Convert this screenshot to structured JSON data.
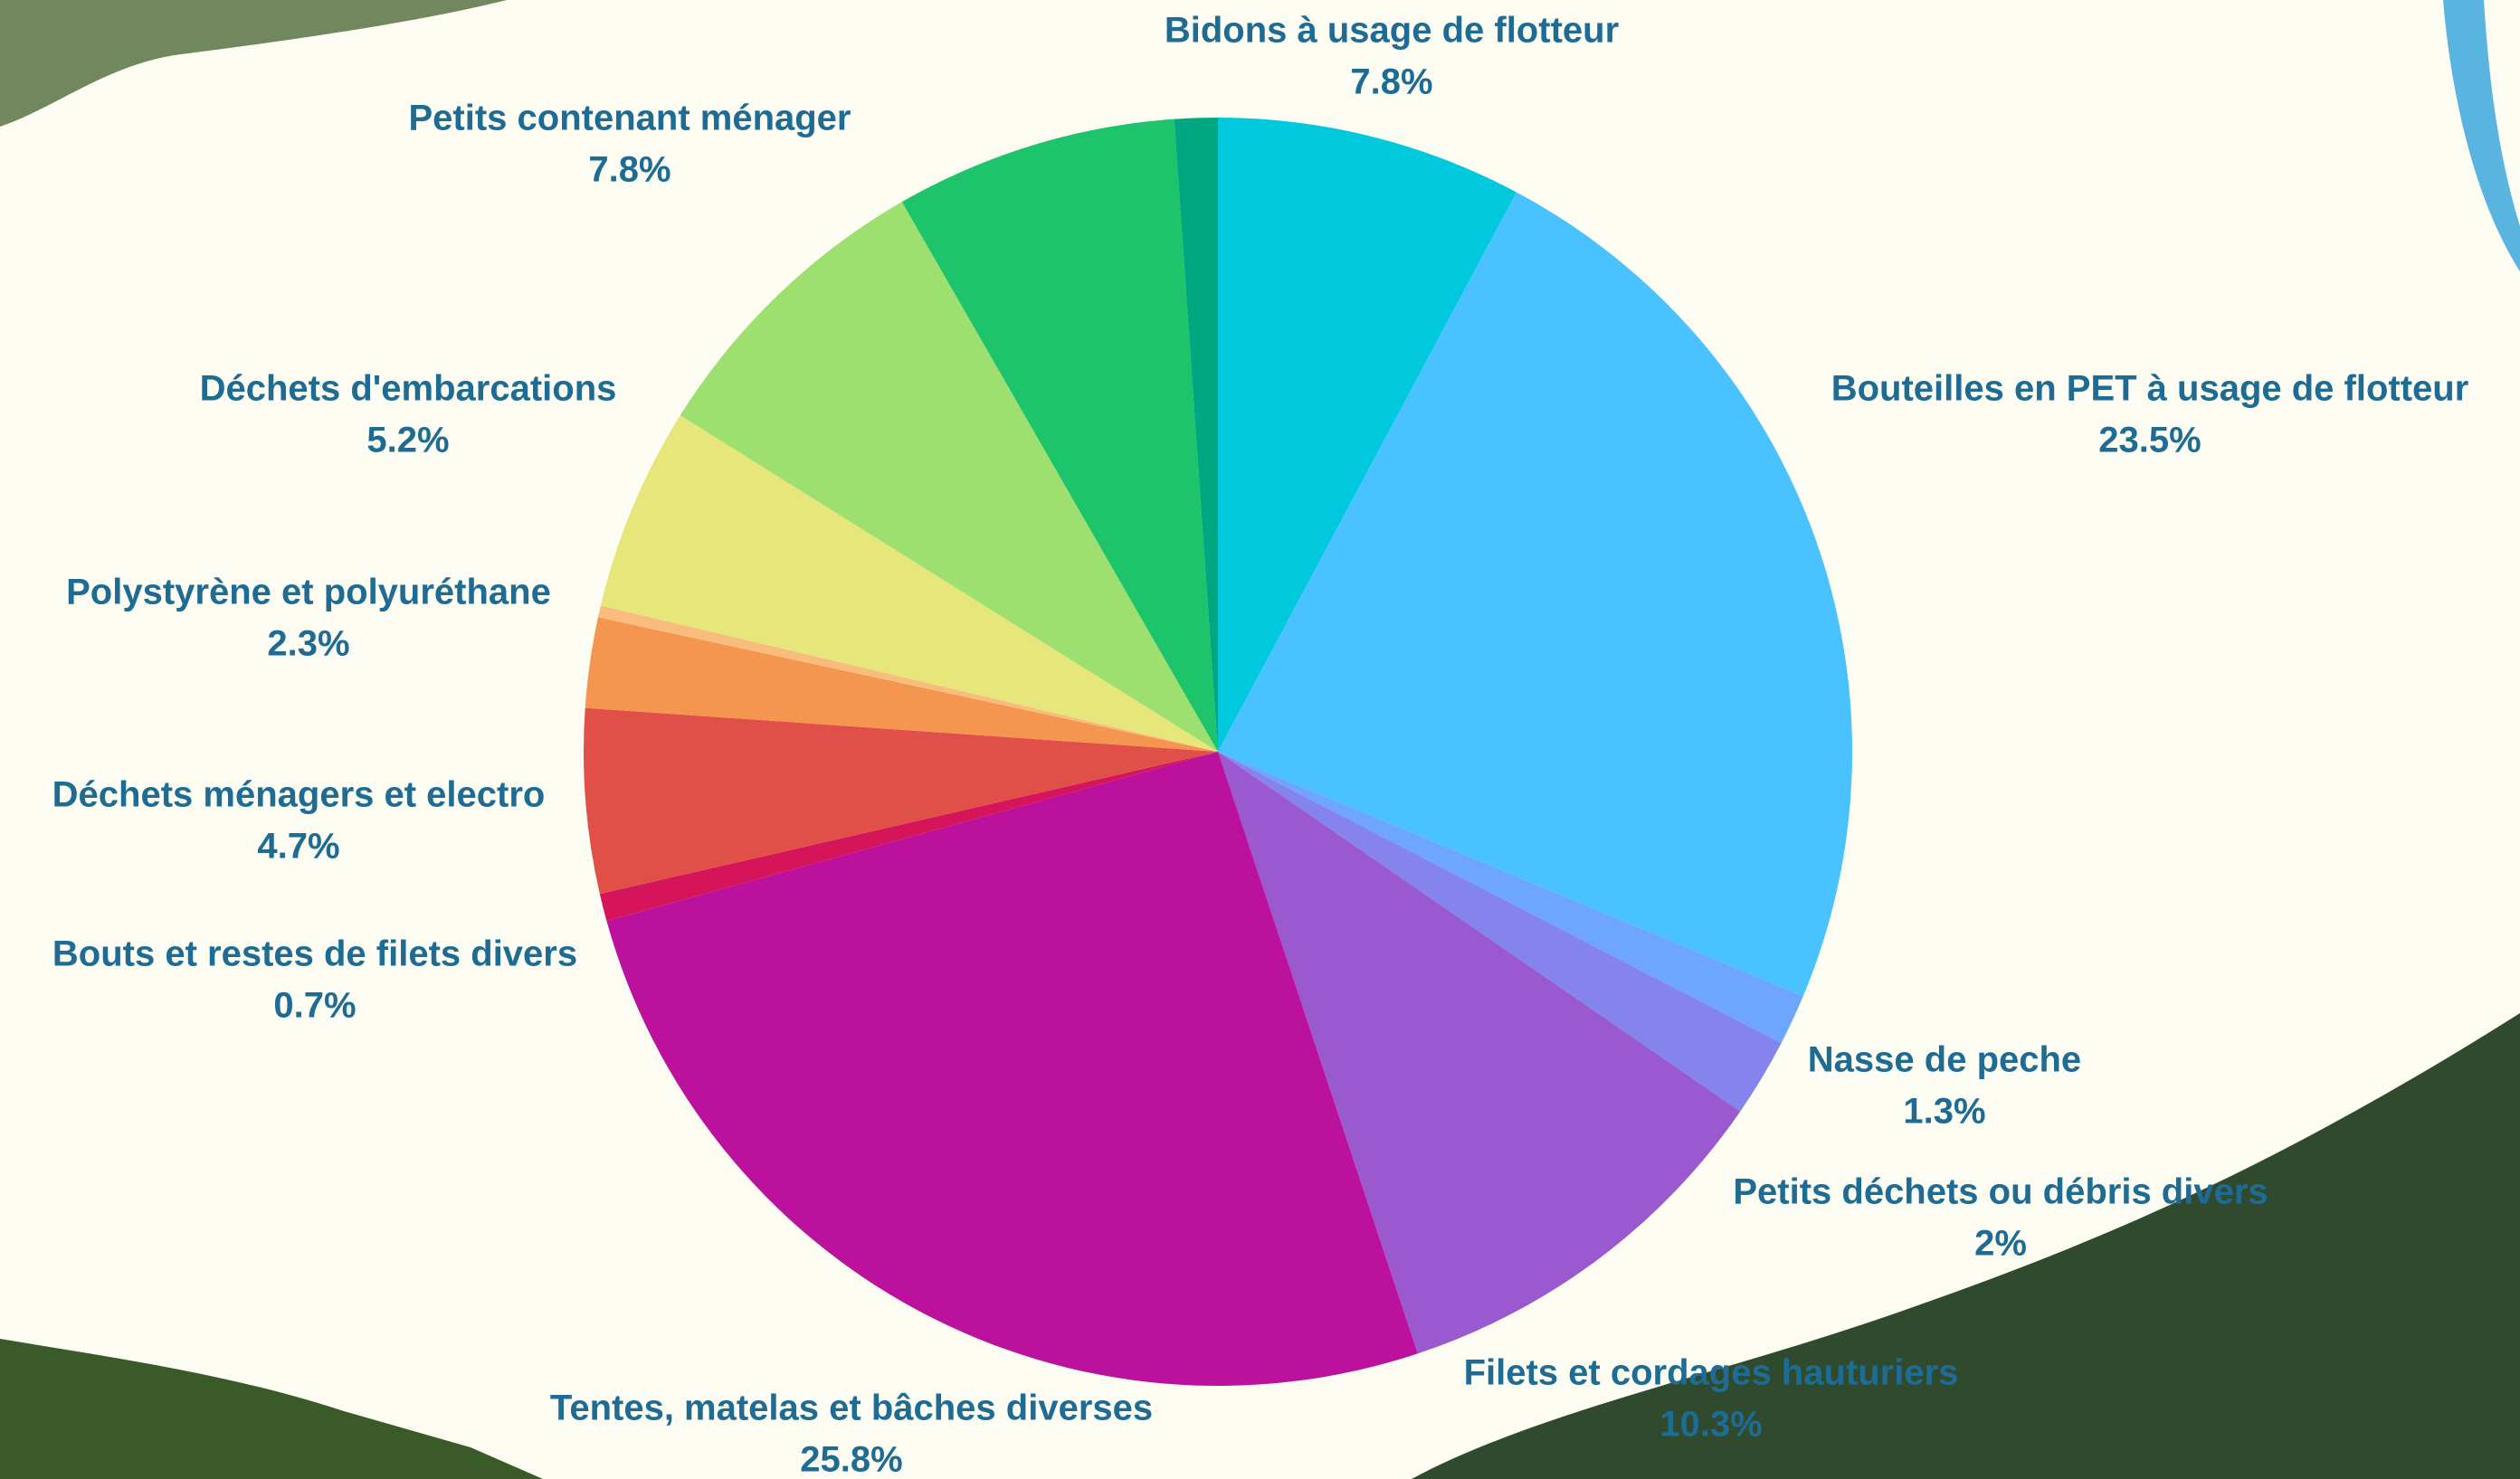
{
  "chart_data": {
    "type": "pie",
    "categories": [
      "Bidons à usage de flotteur",
      "Bouteilles en PET à usage de flotteur",
      "Nasse de peche",
      "Petits déchets ou débris divers",
      "Filets et cordages hauturiers",
      "Tentes, matelas et bâches diverses",
      "Bouts et restes de filets divers",
      "Déchets ménagers et electro",
      "Polystyrène et polyuréthane",
      null,
      "Déchets d'embarcations",
      "Petits contenant ménager",
      null,
      null
    ],
    "values": [
      7.8,
      23.5,
      1.3,
      2,
      10.3,
      25.8,
      0.7,
      4.7,
      2.3,
      0.3,
      5.2,
      7.8,
      7.2,
      1.1
    ],
    "value_labels": [
      "7.8%",
      "23.5%",
      "1.3%",
      "2%",
      "10.3%",
      "25.8%",
      "0.7%",
      "4.7%",
      "2.3%",
      null,
      "5.2%",
      "7.8%",
      null,
      null
    ],
    "colors": [
      "#00c9dd",
      "#4ac2ff",
      "#6ea5ff",
      "#8484ec",
      "#9b59d0",
      "#bb119c",
      "#d5145a",
      "#e05048",
      "#f59650",
      "#f8bc7c",
      "#e6e67a",
      "#9de070",
      "#1ec46c",
      "#00a882"
    ]
  }
}
